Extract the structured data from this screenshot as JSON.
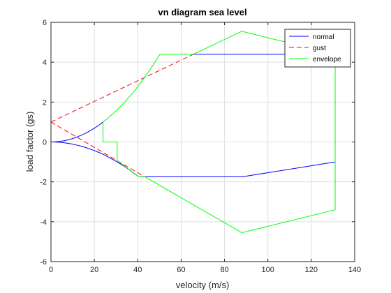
{
  "chart_data": {
    "type": "line",
    "title": "vn diagram sea level",
    "xlabel": "velocity (m/s)",
    "ylabel": "load factor (gs)",
    "xlim": [
      0,
      140
    ],
    "ylim": [
      -6,
      6
    ],
    "xticks": [
      0,
      20,
      40,
      60,
      80,
      100,
      120,
      140
    ],
    "yticks": [
      -6,
      -4,
      -2,
      0,
      2,
      4,
      6
    ],
    "grid": true,
    "legend_position": "top-right",
    "series": [
      {
        "name": "normal",
        "color": "#0000ff",
        "dash": "solid",
        "segments": [
          {
            "x": [
              0,
              2,
              4,
              6,
              8,
              10,
              12,
              14,
              16,
              18,
              20,
              22,
              24,
              24
            ],
            "y": [
              0,
              0.007,
              0.028,
              0.063,
              0.11,
              0.17,
              0.25,
              0.34,
              0.44,
              0.56,
              0.69,
              0.84,
              1.0,
              1.0
            ]
          },
          {
            "x": [
              0,
              2,
              4,
              6,
              8,
              10,
              12,
              14,
              16,
              18,
              20,
              22,
              24,
              26,
              28,
              30,
              32,
              34,
              36,
              38,
              40,
              43.3,
              88,
              131
            ],
            "y": [
              0,
              -0.004,
              -0.017,
              -0.04,
              -0.07,
              -0.11,
              -0.16,
              -0.21,
              -0.28,
              -0.35,
              -0.43,
              -0.52,
              -0.62,
              -0.73,
              -0.85,
              -0.97,
              -1.1,
              -1.24,
              -1.39,
              -1.55,
              -1.71,
              -1.75,
              -1.75,
              -1.0
            ]
          },
          {
            "x": [
              65.7,
              88,
              131
            ],
            "y": [
              4.4,
              4.4,
              4.4
            ]
          }
        ]
      },
      {
        "name": "gust",
        "color": "#ff0000",
        "dash": "dashed",
        "segments": [
          {
            "x": [
              0,
              65.7
            ],
            "y": [
              1,
              4.4
            ]
          },
          {
            "x": [
              0,
              43.3
            ],
            "y": [
              1,
              -1.75
            ]
          }
        ]
      },
      {
        "name": "envelope",
        "color": "#00ff00",
        "dash": "solid",
        "segments": [
          {
            "x": [
              24,
              24,
              30.5,
              30.5,
              40,
              43.3,
              88,
              131,
              131,
              88,
              65.7,
              50.3,
              46,
              42,
              38,
              34,
              30,
              26,
              24
            ],
            "y": [
              1.0,
              0.0,
              0.0,
              -0.93,
              -1.71,
              -1.75,
              -4.55,
              -3.4,
              4.4,
              5.55,
              4.4,
              4.4,
              3.68,
              3.06,
              2.5,
              2.0,
              1.56,
              1.17,
              1.0
            ]
          }
        ]
      }
    ]
  }
}
